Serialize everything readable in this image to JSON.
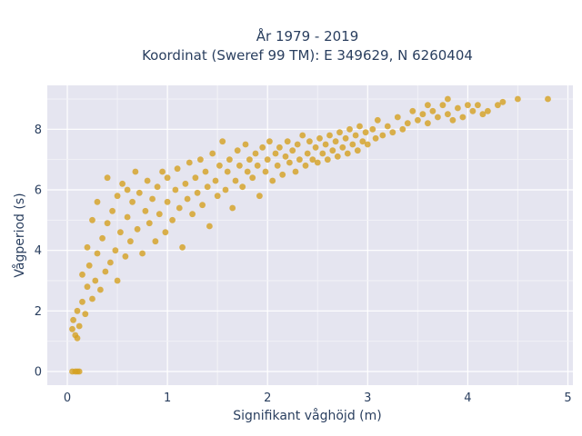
{
  "chart_data": {
    "type": "scatter",
    "title_lines": [
      "År 1979 - 2019",
      "Koordinat (Sweref 99 TM): E 349629, N 6260404"
    ],
    "xlabel": "Signifikant våghöjd (m)",
    "ylabel": "Vågperiod (s)",
    "xlim": [
      -0.2,
      5.05
    ],
    "ylim": [
      -0.45,
      9.45
    ],
    "x_ticks": [
      0,
      1,
      2,
      3,
      4,
      5
    ],
    "y_ticks": [
      0,
      2,
      4,
      6,
      8
    ],
    "grid": true,
    "colors": {
      "marker": "#d4a020",
      "plot_bg": "#e5e5f0",
      "grid": "#ffffff",
      "paper_bg": "#ffffff"
    },
    "series": [
      {
        "points": [
          [
            0.05,
            1.4
          ],
          [
            0.06,
            1.7
          ],
          [
            0.08,
            1.2
          ],
          [
            0.1,
            1.1
          ],
          [
            0.1,
            2.0
          ],
          [
            0.12,
            1.5
          ],
          [
            0.15,
            2.3
          ],
          [
            0.15,
            3.2
          ],
          [
            0.18,
            1.9
          ],
          [
            0.2,
            2.8
          ],
          [
            0.2,
            4.1
          ],
          [
            0.22,
            3.5
          ],
          [
            0.25,
            2.4
          ],
          [
            0.25,
            5.0
          ],
          [
            0.28,
            3.0
          ],
          [
            0.3,
            3.9
          ],
          [
            0.3,
            5.6
          ],
          [
            0.33,
            2.7
          ],
          [
            0.35,
            4.4
          ],
          [
            0.38,
            3.3
          ],
          [
            0.4,
            4.9
          ],
          [
            0.4,
            6.4
          ],
          [
            0.43,
            3.6
          ],
          [
            0.45,
            5.3
          ],
          [
            0.48,
            4.0
          ],
          [
            0.5,
            5.8
          ],
          [
            0.5,
            3.0
          ],
          [
            0.53,
            4.6
          ],
          [
            0.55,
            6.2
          ],
          [
            0.58,
            3.8
          ],
          [
            0.6,
            5.1
          ],
          [
            0.6,
            6.0
          ],
          [
            0.63,
            4.3
          ],
          [
            0.65,
            5.6
          ],
          [
            0.68,
            6.6
          ],
          [
            0.7,
            4.7
          ],
          [
            0.72,
            5.9
          ],
          [
            0.75,
            3.9
          ],
          [
            0.78,
            5.3
          ],
          [
            0.8,
            6.3
          ],
          [
            0.82,
            4.9
          ],
          [
            0.85,
            5.7
          ],
          [
            0.88,
            4.3
          ],
          [
            0.9,
            6.1
          ],
          [
            0.92,
            5.2
          ],
          [
            0.95,
            6.6
          ],
          [
            0.98,
            4.6
          ],
          [
            1.0,
            5.6
          ],
          [
            1.0,
            6.4
          ],
          [
            1.05,
            5.0
          ],
          [
            1.08,
            6.0
          ],
          [
            1.1,
            6.7
          ],
          [
            1.12,
            5.4
          ],
          [
            1.15,
            4.1
          ],
          [
            1.18,
            6.2
          ],
          [
            1.2,
            5.7
          ],
          [
            1.22,
            6.9
          ],
          [
            1.25,
            5.2
          ],
          [
            1.28,
            6.4
          ],
          [
            1.3,
            5.9
          ],
          [
            1.33,
            7.0
          ],
          [
            1.35,
            5.5
          ],
          [
            1.38,
            6.6
          ],
          [
            1.4,
            6.1
          ],
          [
            1.42,
            4.8
          ],
          [
            1.45,
            7.2
          ],
          [
            1.48,
            6.3
          ],
          [
            1.5,
            5.8
          ],
          [
            1.52,
            6.8
          ],
          [
            1.55,
            7.6
          ],
          [
            1.58,
            6.0
          ],
          [
            1.6,
            6.6
          ],
          [
            1.62,
            7.0
          ],
          [
            1.65,
            5.4
          ],
          [
            1.68,
            6.3
          ],
          [
            1.7,
            7.3
          ],
          [
            1.72,
            6.8
          ],
          [
            1.75,
            6.1
          ],
          [
            1.78,
            7.5
          ],
          [
            1.8,
            6.6
          ],
          [
            1.82,
            7.0
          ],
          [
            1.85,
            6.4
          ],
          [
            1.88,
            7.2
          ],
          [
            1.9,
            6.8
          ],
          [
            1.92,
            5.8
          ],
          [
            1.95,
            7.4
          ],
          [
            1.98,
            6.6
          ],
          [
            2.0,
            7.0
          ],
          [
            2.02,
            7.6
          ],
          [
            2.05,
            6.3
          ],
          [
            2.08,
            7.2
          ],
          [
            2.1,
            6.8
          ],
          [
            2.12,
            7.4
          ],
          [
            2.15,
            6.5
          ],
          [
            2.18,
            7.1
          ],
          [
            2.2,
            7.6
          ],
          [
            2.22,
            6.9
          ],
          [
            2.25,
            7.3
          ],
          [
            2.28,
            6.6
          ],
          [
            2.3,
            7.5
          ],
          [
            2.32,
            7.0
          ],
          [
            2.35,
            7.8
          ],
          [
            2.38,
            6.8
          ],
          [
            2.4,
            7.2
          ],
          [
            2.42,
            7.6
          ],
          [
            2.45,
            7.0
          ],
          [
            2.48,
            7.4
          ],
          [
            2.5,
            6.9
          ],
          [
            2.52,
            7.7
          ],
          [
            2.55,
            7.2
          ],
          [
            2.58,
            7.5
          ],
          [
            2.6,
            7.0
          ],
          [
            2.62,
            7.8
          ],
          [
            2.65,
            7.3
          ],
          [
            2.68,
            7.6
          ],
          [
            2.7,
            7.1
          ],
          [
            2.72,
            7.9
          ],
          [
            2.75,
            7.4
          ],
          [
            2.78,
            7.7
          ],
          [
            2.8,
            7.2
          ],
          [
            2.82,
            8.0
          ],
          [
            2.85,
            7.5
          ],
          [
            2.88,
            7.8
          ],
          [
            2.9,
            7.3
          ],
          [
            2.92,
            8.1
          ],
          [
            2.95,
            7.6
          ],
          [
            2.98,
            7.9
          ],
          [
            3.0,
            7.5
          ],
          [
            3.05,
            8.0
          ],
          [
            3.08,
            7.7
          ],
          [
            3.1,
            8.3
          ],
          [
            3.15,
            7.8
          ],
          [
            3.2,
            8.1
          ],
          [
            3.25,
            7.9
          ],
          [
            3.3,
            8.4
          ],
          [
            3.35,
            8.0
          ],
          [
            3.4,
            8.2
          ],
          [
            3.45,
            8.6
          ],
          [
            3.5,
            8.3
          ],
          [
            3.55,
            8.5
          ],
          [
            3.6,
            8.2
          ],
          [
            3.65,
            8.6
          ],
          [
            3.7,
            8.4
          ],
          [
            3.75,
            8.8
          ],
          [
            3.8,
            8.5
          ],
          [
            3.85,
            8.3
          ],
          [
            3.9,
            8.7
          ],
          [
            3.95,
            8.4
          ],
          [
            4.0,
            8.8
          ],
          [
            4.05,
            8.6
          ],
          [
            4.1,
            8.8
          ],
          [
            4.15,
            8.5
          ],
          [
            4.2,
            8.6
          ],
          [
            4.3,
            8.8
          ],
          [
            4.35,
            8.9
          ],
          [
            4.5,
            9.0
          ],
          [
            4.8,
            9.0
          ],
          [
            3.8,
            9.0
          ],
          [
            3.6,
            8.8
          ],
          [
            0.05,
            0.0
          ],
          [
            0.08,
            0.0
          ],
          [
            0.1,
            0.0
          ],
          [
            0.12,
            0.0
          ]
        ]
      }
    ]
  }
}
